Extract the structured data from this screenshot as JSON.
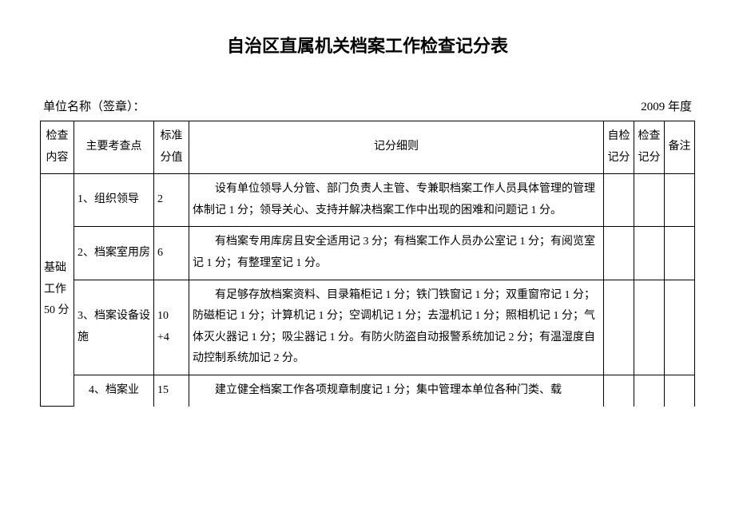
{
  "title": "自治区直属机关档案工作检查记分表",
  "meta": {
    "unit_label": "单位名称（签章）：",
    "year": "2009 年度"
  },
  "headers": {
    "category": "检查内容",
    "point": "主要考查点",
    "std_score": "标准分值",
    "detail": "记分细则",
    "self": "自检记分",
    "check": "检查记分",
    "note": "备注"
  },
  "category": {
    "label": "基础工作50 分"
  },
  "rows": [
    {
      "point": "1、组织领导",
      "score": "2",
      "detail": "设有单位领导人分管、部门负责人主管、专兼职档案工作人员具体管理的管理体制记 1 分；领导关心、支持并解决档案工作中出现的困难和问题记 1 分。"
    },
    {
      "point": "2、档案室用房",
      "score": "6",
      "detail": "有档案专用库房且安全适用记 3 分；有档案工作人员办公室记 1 分；有阅览室记 1 分；有整理室记 1 分。"
    },
    {
      "point": "3、档案设备设施",
      "score": "10\n+4",
      "detail": "有足够存放档案资料、目录箱柜记 1 分；铁门铁窗记 1 分；双重窗帘记 1 分；防磁柜记 1 分；计算机记 1 分；空调机记 1 分；去湿机记 1 分；照相机记 1 分；气体灭火器记 1 分；吸尘器记 1 分。有防火防盗自动报警系统加记 2 分；有温湿度自动控制系统加记 2 分。"
    },
    {
      "point": "　4、档案业",
      "score": "15",
      "detail": "建立健全档案工作各项规章制度记 1 分；集中管理本单位各种门类、载"
    }
  ],
  "colors": {
    "text": "#000000",
    "border": "#000000",
    "background": "#ffffff"
  },
  "typography": {
    "title_fontsize": 22,
    "body_fontsize": 14,
    "meta_fontsize": 15,
    "line_height": 1.9,
    "font_family": "SimSun"
  }
}
